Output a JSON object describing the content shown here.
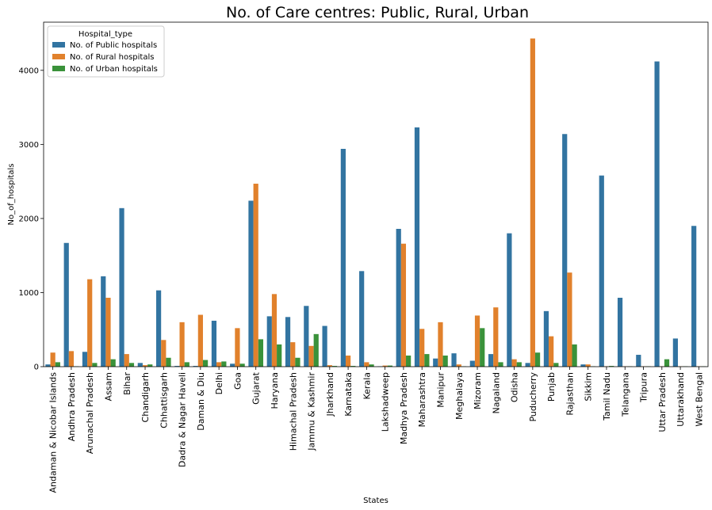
{
  "chart_data": {
    "type": "bar",
    "title": "No. of Care centres: Public, Rural, Urban",
    "xlabel": "States",
    "ylabel": "No_of_hospitals",
    "ylim": [
      0,
      4650
    ],
    "yticks": [
      0,
      1000,
      2000,
      3000,
      4000
    ],
    "grid": false,
    "legend": {
      "title": "Hospital_type",
      "placement": "top-left"
    },
    "categories": [
      "Andaman & Nicobar Islands",
      "Andhra Pradesh",
      "Arunachal Pradesh",
      "Assam",
      "Bihar",
      "Chandigarh",
      "Chhattisgarh",
      "Dadra & Nagar Haveli",
      "Daman & Diu",
      "Delhi",
      "Goa",
      "Gujarat",
      "Haryana",
      "Himachal Pradesh",
      "Jammu & Kashmir",
      "Jharkhand",
      "Karnataka",
      "Kerala",
      "Lakshadweep",
      "Madhya Pradesh",
      "Maharashtra",
      "Manipur",
      "Meghalaya",
      "Mizoram",
      "Nagaland",
      "Odisha",
      "Puducherry",
      "Punjab",
      "Rajasthan",
      "Sikkim",
      "Tamil Nadu",
      "Telangana",
      "Tripura",
      "Uttar Pradesh",
      "Uttarakhand",
      "West Bengal"
    ],
    "series": [
      {
        "name": "No. of Public hospitals",
        "color": "#3274a1",
        "values": [
          30,
          1670,
          200,
          1220,
          2140,
          50,
          1030,
          10,
          10,
          620,
          40,
          2240,
          680,
          670,
          820,
          550,
          2940,
          1290,
          5,
          1860,
          3230,
          110,
          180,
          80,
          170,
          1800,
          50,
          750,
          3140,
          30,
          2580,
          930,
          160,
          4120,
          380,
          1900
        ]
      },
      {
        "name": "No. of Rural hospitals",
        "color": "#e1812c",
        "values": [
          190,
          210,
          1180,
          930,
          170,
          20,
          360,
          600,
          700,
          60,
          520,
          2470,
          980,
          330,
          280,
          20,
          150,
          60,
          15,
          1660,
          510,
          600,
          30,
          690,
          800,
          100,
          4430,
          410,
          1270,
          30,
          5,
          5,
          5,
          5,
          5,
          5
        ]
      },
      {
        "name": "No. of Urban hospitals",
        "color": "#3a923a",
        "values": [
          60,
          5,
          50,
          100,
          50,
          30,
          120,
          60,
          90,
          70,
          40,
          370,
          300,
          120,
          440,
          10,
          10,
          30,
          15,
          150,
          170,
          150,
          5,
          520,
          60,
          60,
          190,
          50,
          300,
          5,
          10,
          5,
          5,
          100,
          5,
          5
        ]
      }
    ]
  }
}
